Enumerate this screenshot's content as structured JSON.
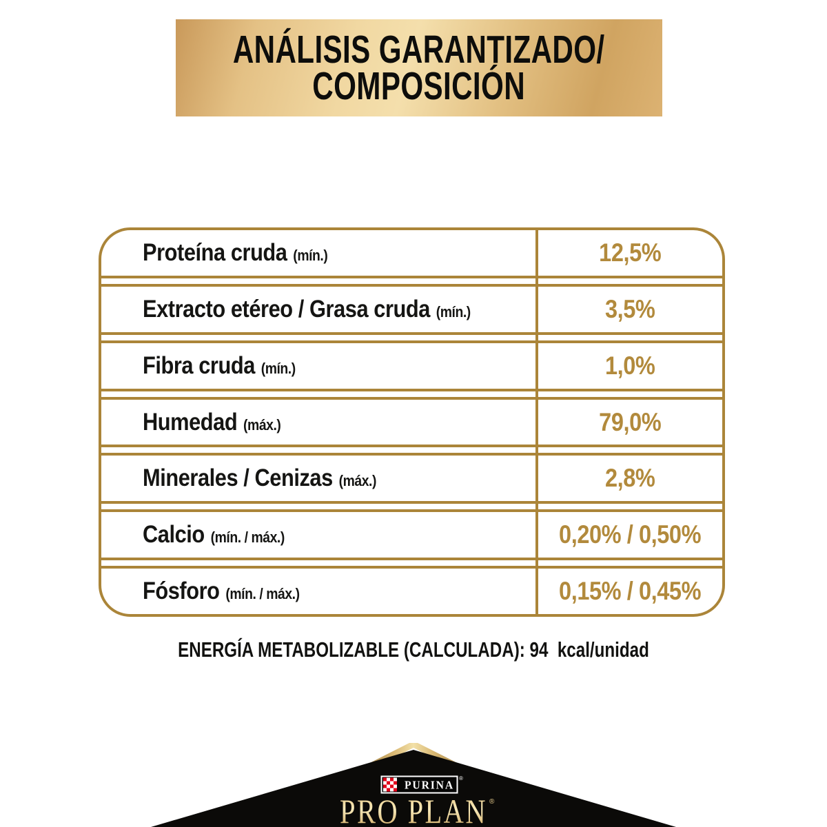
{
  "banner": {
    "title_line1": "ANÁLISIS GARANTIZADO/",
    "title_line2": "COMPOSICIÓN"
  },
  "table": {
    "rows": [
      {
        "label": "Proteína cruda",
        "qualifier": "(mín.)",
        "value": "12,5%"
      },
      {
        "label": "Extracto etéreo / Grasa cruda",
        "qualifier": "(mín.)",
        "value": "3,5%"
      },
      {
        "label": "Fibra cruda",
        "qualifier": "(mín.)",
        "value": "1,0%"
      },
      {
        "label": "Humedad",
        "qualifier": "(máx.)",
        "value": "79,0%"
      },
      {
        "label": "Minerales / Cenizas",
        "qualifier": "(máx.)",
        "value": "2,8%"
      },
      {
        "label": "Calcio",
        "qualifier": "(mín. / máx.)",
        "value": "0,20% / 0,50%"
      },
      {
        "label": "Fósforo",
        "qualifier": "(mín. / máx.)",
        "value": "0,15% / 0,45%"
      }
    ]
  },
  "energy_note": "ENERGÍA METABOLIZABLE (CALCULADA): 94  kcal/unidad",
  "brand": {
    "purina": "PURINA",
    "proplan": "PRO PLAN",
    "registered": "®"
  },
  "colors": {
    "table_gold": "#ab8539",
    "value_gold": "#b28a3c",
    "banner_gold_light": "#f4dfac",
    "banner_gold_dark": "#c9995a",
    "purina_red": "#e2001a",
    "roof_black": "#0b0a08",
    "proplan_gold": "#e9cd8d"
  }
}
